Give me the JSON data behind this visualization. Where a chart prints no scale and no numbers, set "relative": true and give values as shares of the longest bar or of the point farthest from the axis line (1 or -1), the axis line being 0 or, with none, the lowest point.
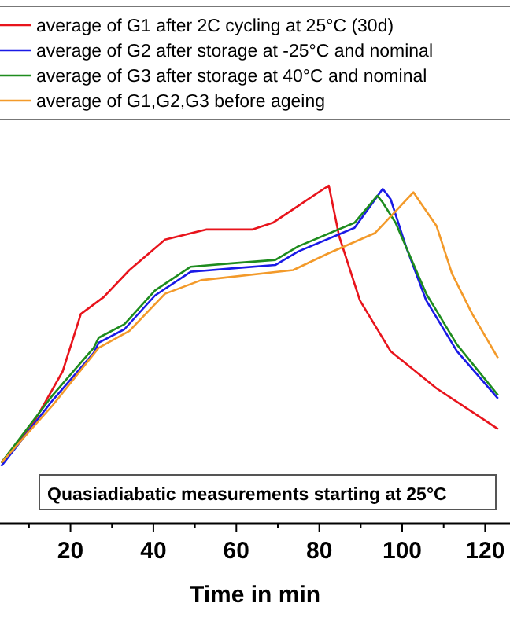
{
  "chart_data": {
    "type": "line",
    "relative": true,
    "xlabel": "Time in min",
    "legend": "top",
    "grid": false,
    "line_style": "solid",
    "xlim": [
      3,
      126
    ],
    "xticks": [
      {
        "value": 10,
        "label": null
      },
      20,
      {
        "value": 30,
        "label": null
      },
      40,
      {
        "value": 50,
        "label": null
      },
      60,
      {
        "value": 70,
        "label": null
      },
      80,
      {
        "value": 90,
        "label": null
      },
      100,
      {
        "value": 110,
        "label": null
      },
      120
    ],
    "annotations": [
      "Quasiadiabatic measurements starting at 25°C"
    ],
    "series": [
      {
        "name": "average of G1 after 2C cycling at 25°C (30d)",
        "color": "#e8141c",
        "x": [
          3.3,
          10.7,
          18.1,
          22.5,
          28,
          34.2,
          42.8,
          52.7,
          63.8,
          68.8,
          74.9,
          82.3,
          84.8,
          89.8,
          97.2,
          108.3,
          123.1
        ],
        "values": [
          0.18,
          0.29,
          0.45,
          0.62,
          0.67,
          0.75,
          0.84,
          0.87,
          0.87,
          0.89,
          0.94,
          1.0,
          0.85,
          0.66,
          0.51,
          0.4,
          0.28
        ]
      },
      {
        "name": "average of G2 after storage at -25°C and nominal",
        "color": "#1a1ae6",
        "x": [
          3.3,
          15.7,
          25.6,
          26.8,
          33,
          40.4,
          49,
          58.9,
          69.4,
          74.9,
          88.5,
          95.3,
          97.2,
          100.9,
          105.8,
          113.2,
          123.1
        ],
        "values": [
          0.17,
          0.365,
          0.505,
          0.535,
          0.575,
          0.675,
          0.745,
          0.755,
          0.765,
          0.805,
          0.875,
          0.99,
          0.96,
          0.82,
          0.66,
          0.51,
          0.37
        ]
      },
      {
        "name": "average of G3 after storage at 40°C and nominal",
        "color": "#1e8c1e",
        "x": [
          3.3,
          15.7,
          25.6,
          26.8,
          33,
          40.4,
          49,
          58.9,
          69.4,
          74.9,
          88.5,
          94,
          95.3,
          98.4,
          105.8,
          113.2,
          123.1
        ],
        "values": [
          0.18,
          0.38,
          0.52,
          0.55,
          0.59,
          0.69,
          0.76,
          0.77,
          0.78,
          0.82,
          0.89,
          0.97,
          0.95,
          0.89,
          0.68,
          0.53,
          0.38
        ]
      },
      {
        "name": "average of G1,G2,G3 before ageing",
        "color": "#f39a2a",
        "x": [
          3.3,
          15.7,
          26.8,
          34.2,
          42.8,
          51.5,
          73.7,
          82.3,
          93.5,
          102.7,
          108.3,
          112,
          116.9,
          123.1
        ],
        "values": [
          0.18,
          0.35,
          0.52,
          0.57,
          0.68,
          0.72,
          0.75,
          0.8,
          0.86,
          0.98,
          0.88,
          0.74,
          0.62,
          0.49
        ]
      }
    ]
  }
}
